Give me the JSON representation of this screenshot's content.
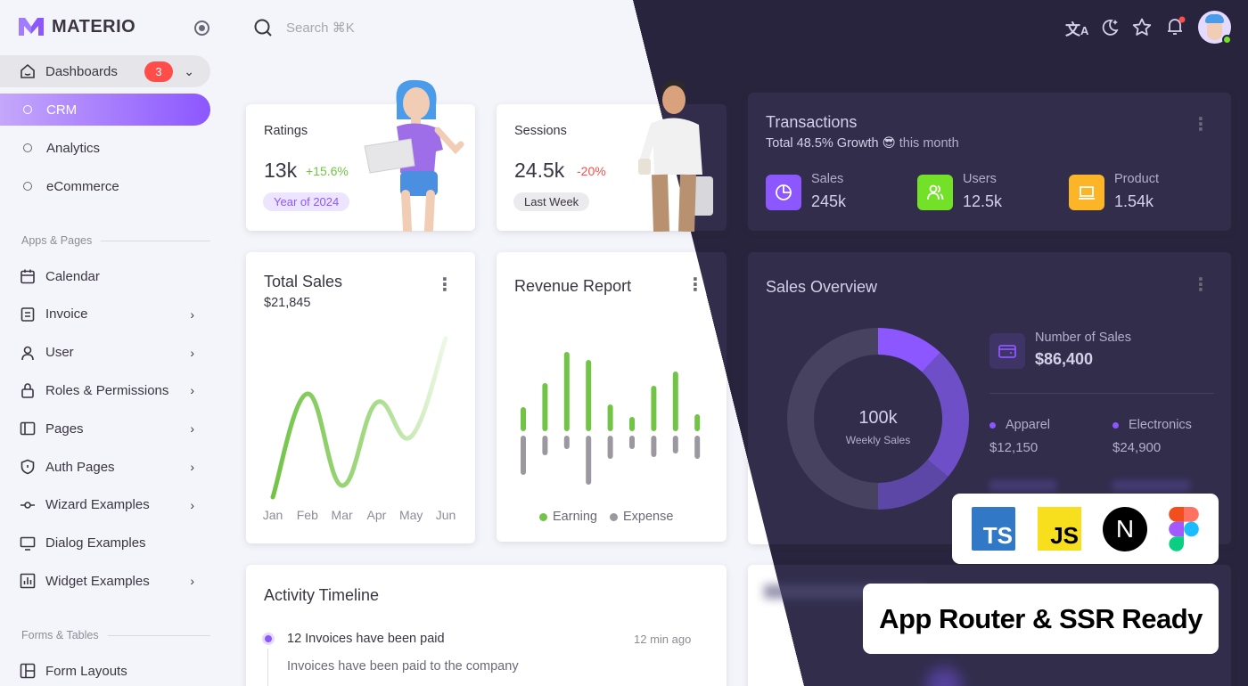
{
  "brand": {
    "name": "MATERIO",
    "accent": "#8c57ff"
  },
  "search": {
    "placeholder": "Search ⌘K"
  },
  "header_icons": [
    "translate-icon",
    "theme-moon-icon",
    "star-icon",
    "bell-icon",
    "avatar"
  ],
  "sidebar": {
    "dashboards": {
      "label": "Dashboards",
      "badge": "3"
    },
    "dash_sub": [
      {
        "label": "CRM",
        "active": true
      },
      {
        "label": "Analytics"
      },
      {
        "label": "eCommerce"
      }
    ],
    "section1": "Apps & Pages",
    "items": [
      {
        "label": "Calendar",
        "icon": "calendar-icon",
        "chevron": false
      },
      {
        "label": "Invoice",
        "icon": "invoice-icon",
        "chevron": true
      },
      {
        "label": "User",
        "icon": "user-icon",
        "chevron": true
      },
      {
        "label": "Roles & Permissions",
        "icon": "lock-icon",
        "chevron": true
      },
      {
        "label": "Pages",
        "icon": "pages-icon",
        "chevron": true
      },
      {
        "label": "Auth Pages",
        "icon": "shield-icon",
        "chevron": true
      },
      {
        "label": "Wizard Examples",
        "icon": "wizard-icon",
        "chevron": true
      },
      {
        "label": "Dialog Examples",
        "icon": "monitor-icon",
        "chevron": false
      },
      {
        "label": "Widget Examples",
        "icon": "chart-icon",
        "chevron": true
      }
    ],
    "section2": "Forms & Tables",
    "items2": [
      {
        "label": "Form Layouts",
        "icon": "layout-icon"
      }
    ]
  },
  "ratings": {
    "title": "Ratings",
    "value": "13k",
    "change": "+15.6%",
    "chip": "Year of 2024"
  },
  "sessions": {
    "title": "Sessions",
    "value": "24.5k",
    "change": "-20%",
    "chip": "Last Week"
  },
  "transactions": {
    "title": "Transactions",
    "subtitle_bold": "Total 48.5% Growth",
    "emoji": "😎",
    "subtitle_rest": "this month",
    "stats": [
      {
        "label": "Sales",
        "value": "245k",
        "color": "#8c57ff",
        "icon": "pie-chart-icon"
      },
      {
        "label": "Users",
        "value": "12.5k",
        "color": "#72e128",
        "icon": "users-icon"
      },
      {
        "label": "Product",
        "value": "1.54k",
        "color": "#fdb528",
        "icon": "laptop-icon"
      }
    ]
  },
  "total_sales": {
    "title": "Total Sales",
    "amount": "$21,845"
  },
  "revenue": {
    "title": "Revenue Report",
    "legend": [
      "Earning",
      "Expense"
    ]
  },
  "sales_overview": {
    "title": "Sales Overview",
    "center_value": "100k",
    "center_label": "Weekly Sales",
    "number_label": "Number of Sales",
    "number_value": "$86,400",
    "items": [
      {
        "label": "Apparel",
        "value": "$12,150"
      },
      {
        "label": "Electronics",
        "value": "$24,900"
      }
    ]
  },
  "activity": {
    "title": "Activity Timeline",
    "item_title": "12 Invoices have been paid",
    "item_time": "12 min ago",
    "item_desc": "Invoices have been paid to the company"
  },
  "promo": {
    "tech": [
      "TS",
      "JS",
      "N"
    ],
    "tagline": "App Router & SSR Ready"
  },
  "chart_data": [
    {
      "type": "line",
      "title": "Total Sales",
      "categories": [
        "Jan",
        "Feb",
        "Mar",
        "Apr",
        "May",
        "Jun"
      ],
      "values": [
        2,
        118,
        15,
        108,
        70,
        180
      ],
      "color": "#72c447"
    },
    {
      "type": "bar",
      "title": "Revenue Report",
      "categories": [
        "1",
        "2",
        "3",
        "4",
        "5",
        "6",
        "7",
        "8",
        "9"
      ],
      "series": [
        {
          "name": "Earning",
          "values": [
            27,
            54,
            89,
            80,
            30,
            16,
            51,
            67,
            19
          ],
          "color": "#72c447"
        },
        {
          "name": "Expense",
          "values": [
            44,
            22,
            15,
            55,
            26,
            15,
            24,
            20,
            26
          ],
          "color": "#9b999f"
        }
      ]
    },
    {
      "type": "pie",
      "title": "Sales Overview",
      "values": [
        12,
        24,
        14,
        50
      ],
      "colors": [
        "#8c57ff",
        "#6f4fc8",
        "#5c47a6",
        "#46425f"
      ]
    }
  ]
}
